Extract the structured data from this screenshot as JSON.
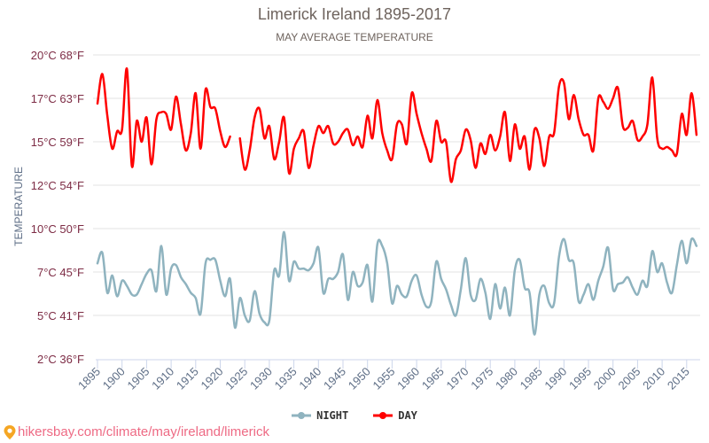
{
  "chart_data": {
    "type": "line",
    "title": "Limerick Ireland 1895-2017",
    "subtitle": "MAY AVERAGE TEMPERATURE",
    "ylabel": "TEMPERATURE",
    "xlabel": "",
    "ylim": [
      2.5,
      20
    ],
    "xlim": [
      1895,
      2017
    ],
    "grid": true,
    "legend_position": "bottom",
    "y_ticks": [
      {
        "value": 20,
        "label": "20°C 68°F"
      },
      {
        "value": 17.5,
        "label": "17°C 63°F"
      },
      {
        "value": 15,
        "label": "15°C 59°F"
      },
      {
        "value": 12.5,
        "label": "12°C 54°F"
      },
      {
        "value": 10,
        "label": "10°C 50°F"
      },
      {
        "value": 7.5,
        "label": "7°C 45°F"
      },
      {
        "value": 5,
        "label": "5°C 41°F"
      },
      {
        "value": 2.5,
        "label": "2°C 36°F"
      }
    ],
    "x_ticks": [
      "1895",
      "1900",
      "1905",
      "1910",
      "1915",
      "1920",
      "1925",
      "1930",
      "1935",
      "1940",
      "1945",
      "1950",
      "1955",
      "1960",
      "1965",
      "1970",
      "1975",
      "1980",
      "1985",
      "1990",
      "1995",
      "2000",
      "2005",
      "2010",
      "2015"
    ],
    "x_start": 1895,
    "series": [
      {
        "name": "NIGHT",
        "color": "#8fb3bf",
        "values": [
          8.0,
          8.6,
          6.3,
          7.3,
          6.1,
          7.0,
          6.7,
          6.2,
          6.2,
          6.8,
          7.4,
          7.6,
          6.4,
          9.0,
          6.2,
          7.7,
          7.9,
          7.2,
          6.8,
          6.3,
          6.0,
          5.1,
          8.0,
          8.2,
          8.2,
          7.0,
          6.1,
          7.1,
          4.3,
          6.0,
          5.0,
          4.7,
          6.4,
          5.1,
          4.6,
          4.7,
          7.6,
          7.3,
          9.8,
          7.0,
          8.1,
          7.7,
          7.7,
          7.6,
          8.0,
          8.9,
          6.3,
          7.1,
          7.1,
          7.5,
          8.5,
          5.9,
          7.5,
          6.7,
          6.9,
          7.9,
          5.8,
          9.1,
          9.0,
          8.0,
          5.7,
          6.7,
          6.2,
          6.1,
          7.0,
          7.3,
          6.2,
          5.5,
          5.8,
          8.1,
          7.1,
          6.5,
          5.6,
          5.0,
          6.5,
          8.3,
          6.2,
          5.9,
          7.1,
          6.3,
          4.8,
          6.8,
          5.4,
          6.6,
          5.0,
          7.6,
          8.2,
          6.6,
          6.3,
          3.9,
          6.2,
          6.7,
          5.7,
          5.7,
          8.4,
          9.4,
          8.2,
          8.0,
          5.8,
          6.2,
          6.8,
          5.9,
          7.0,
          7.8,
          8.9,
          6.5,
          6.8,
          6.9,
          7.2,
          6.6,
          6.2,
          7.0,
          6.7,
          8.7,
          7.5,
          8.0,
          6.9,
          6.3,
          7.9,
          9.3,
          8.0,
          9.4,
          9.0
        ]
      },
      {
        "name": "DAY",
        "color": "#ff0000",
        "values": [
          17.2,
          18.9,
          16.5,
          14.6,
          15.6,
          15.7,
          19.2,
          13.6,
          16.2,
          15.0,
          16.4,
          13.7,
          16.3,
          16.7,
          16.6,
          15.7,
          17.6,
          16.0,
          14.5,
          15.5,
          17.8,
          14.6,
          18.0,
          17.0,
          16.9,
          15.6,
          14.7,
          15.3,
          null,
          15.2,
          13.4,
          14.5,
          16.4,
          16.9,
          15.2,
          15.9,
          14.0,
          15.0,
          16.4,
          13.2,
          14.6,
          15.2,
          15.6,
          13.5,
          14.8,
          15.9,
          15.5,
          15.9,
          14.9,
          15.0,
          15.5,
          15.7,
          14.8,
          15.3,
          14.7,
          16.5,
          15.2,
          17.4,
          15.5,
          14.5,
          14.0,
          16.0,
          16.0,
          14.9,
          17.8,
          16.6,
          15.5,
          14.6,
          13.9,
          16.2,
          15.0,
          15.0,
          12.7,
          14.0,
          14.5,
          15.7,
          15.1,
          13.5,
          14.9,
          14.3,
          15.4,
          14.5,
          15.3,
          16.7,
          13.9,
          16.0,
          14.6,
          15.3,
          13.4,
          15.7,
          15.2,
          13.6,
          15.3,
          15.5,
          18.2,
          18.4,
          16.3,
          17.7,
          16.3,
          15.4,
          15.4,
          14.5,
          17.5,
          17.3,
          16.9,
          17.5,
          18.1,
          15.9,
          15.8,
          16.2,
          15.1,
          15.3,
          16.0,
          18.7,
          15.2,
          14.6,
          14.7,
          14.5,
          14.3,
          16.6,
          15.4,
          17.8,
          15.4
        ]
      }
    ]
  },
  "footer": {
    "icon": "map-pin-icon",
    "text": "hikersbay.com/climate/may/ireland/limerick"
  }
}
